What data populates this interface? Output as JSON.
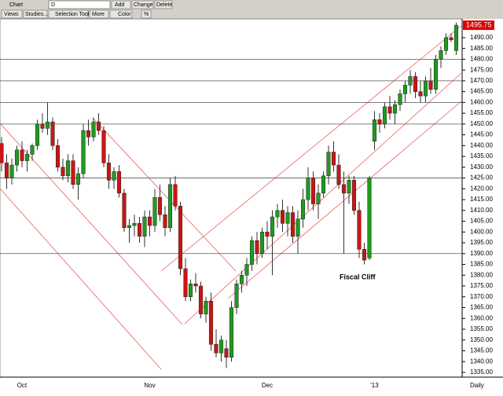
{
  "toolbar": {
    "title": "Chart",
    "symbol": "D",
    "add": "Add",
    "change": "Change",
    "delete": "Delete",
    "views": "Views",
    "studies": "Studies...",
    "tool": "Selection Tool",
    "more": "More",
    "color": "Color",
    "percent": "%"
  },
  "chart_data": {
    "type": "candlestick",
    "categories": [
      null,
      null,
      null,
      null,
      "Oct",
      null,
      null,
      null,
      null,
      null,
      null,
      null,
      null,
      null,
      null,
      null,
      null,
      null,
      null,
      null,
      null,
      null,
      null,
      null,
      null,
      null,
      null,
      null,
      null,
      "Nov",
      null,
      null,
      null,
      null,
      null,
      null,
      null,
      null,
      null,
      null,
      null,
      null,
      null,
      null,
      null,
      null,
      null,
      null,
      null,
      null,
      null,
      null,
      "Dec",
      null,
      null,
      null,
      null,
      null,
      null,
      null,
      null,
      null,
      null,
      null,
      null,
      null,
      null,
      null,
      null,
      null,
      null,
      null,
      null,
      "'13",
      null,
      null,
      null,
      null,
      null,
      null,
      null,
      null,
      null,
      null,
      null,
      null,
      null,
      null,
      null,
      null
    ],
    "open": [
      1441,
      1432,
      1425,
      1431,
      1438,
      1433,
      1436,
      1440,
      1450,
      1448,
      1451,
      1440,
      1430,
      1426,
      1433,
      1422,
      1427,
      1447,
      1444,
      1451,
      1447,
      1432,
      1424,
      1428,
      1418,
      1402,
      1403,
      1404,
      1398,
      1407,
      1403,
      1416,
      1408,
      1402,
      1422,
      1412,
      1383,
      1370,
      1376,
      1375,
      1362,
      1368,
      1348,
      1344,
      1346,
      1342,
      1365,
      1376,
      1380,
      1385,
      1396,
      1390,
      1400,
      1398,
      1407,
      1410,
      1404,
      1409,
      1398,
      1406,
      1415,
      1425,
      1413,
      1418,
      1426,
      1437,
      1431,
      1422,
      1418,
      1424,
      1410,
      1392,
      1388,
      1442,
      1452,
      1450,
      1458,
      1455,
      1459,
      1464,
      1468,
      1472,
      1465,
      1463,
      1470,
      1466,
      1480,
      1484,
      1490,
      1484
    ],
    "high": [
      1444,
      1436,
      1434,
      1440,
      1442,
      1438,
      1441,
      1452,
      1455,
      1460,
      1453,
      1443,
      1434,
      1436,
      1436,
      1430,
      1450,
      1452,
      1453,
      1455,
      1449,
      1436,
      1430,
      1431,
      1420,
      1406,
      1408,
      1407,
      1410,
      1410,
      1420,
      1422,
      1412,
      1425,
      1426,
      1414,
      1388,
      1378,
      1381,
      1377,
      1370,
      1372,
      1355,
      1352,
      1350,
      1368,
      1378,
      1382,
      1388,
      1398,
      1400,
      1402,
      1405,
      1410,
      1413,
      1415,
      1412,
      1412,
      1410,
      1420,
      1430,
      1428,
      1422,
      1428,
      1440,
      1442,
      1436,
      1428,
      1426,
      1426,
      1414,
      1395,
      1426,
      1456,
      1455,
      1460,
      1463,
      1461,
      1466,
      1470,
      1475,
      1474,
      1470,
      1472,
      1476,
      1482,
      1486,
      1492,
      1492,
      1497
    ],
    "low": [
      1428,
      1420,
      1422,
      1428,
      1430,
      1428,
      1433,
      1438,
      1446,
      1445,
      1438,
      1428,
      1424,
      1423,
      1420,
      1415,
      1425,
      1440,
      1442,
      1445,
      1430,
      1420,
      1420,
      1416,
      1400,
      1395,
      1398,
      1395,
      1393,
      1398,
      1400,
      1405,
      1398,
      1400,
      1410,
      1380,
      1368,
      1368,
      1372,
      1360,
      1358,
      1345,
      1342,
      1340,
      1337,
      1340,
      1362,
      1372,
      1375,
      1382,
      1385,
      1388,
      1392,
      1380,
      1402,
      1400,
      1398,
      1395,
      1390,
      1402,
      1410,
      1410,
      1406,
      1416,
      1422,
      1428,
      1420,
      1390,
      1413,
      1408,
      1388,
      1385,
      1387,
      1438,
      1446,
      1448,
      1452,
      1450,
      1456,
      1460,
      1464,
      1462,
      1460,
      1460,
      1464,
      1464,
      1476,
      1482,
      1488,
      1482
    ],
    "close": [
      1432,
      1425,
      1431,
      1438,
      1433,
      1436,
      1440,
      1450,
      1448,
      1451,
      1440,
      1430,
      1426,
      1433,
      1422,
      1427,
      1447,
      1444,
      1451,
      1447,
      1432,
      1424,
      1428,
      1418,
      1402,
      1403,
      1404,
      1398,
      1407,
      1403,
      1416,
      1408,
      1402,
      1422,
      1412,
      1383,
      1370,
      1376,
      1375,
      1362,
      1368,
      1348,
      1344,
      1350,
      1342,
      1365,
      1376,
      1380,
      1385,
      1396,
      1390,
      1400,
      1398,
      1407,
      1410,
      1404,
      1409,
      1398,
      1406,
      1415,
      1425,
      1413,
      1418,
      1426,
      1437,
      1431,
      1422,
      1418,
      1424,
      1410,
      1392,
      1387,
      1425,
      1452,
      1450,
      1458,
      1455,
      1459,
      1464,
      1468,
      1472,
      1465,
      1463,
      1470,
      1466,
      1480,
      1484,
      1490,
      1489,
      1495.75
    ],
    "up_color": "#1f9a1f",
    "down_color": "#cc1414",
    "ylim": [
      1332.8,
      1498.7
    ],
    "yticks": [
      {
        "value": 1335,
        "label": "1335.00"
      },
      {
        "value": 1340,
        "label": "1340.00"
      },
      {
        "value": 1345,
        "label": "1345.00"
      },
      {
        "value": 1350,
        "label": "1350.00"
      },
      {
        "value": 1355,
        "label": "1355.00"
      },
      {
        "value": 1360,
        "label": "1360.00"
      },
      {
        "value": 1365,
        "label": "1365.00"
      },
      {
        "value": 1370,
        "label": "1370.00"
      },
      {
        "value": 1375,
        "label": "1375.00"
      },
      {
        "value": 1380,
        "label": "1380.00"
      },
      {
        "value": 1385,
        "label": "1385.00"
      },
      {
        "value": 1390,
        "label": "1390.00"
      },
      {
        "value": 1395,
        "label": "1395.00"
      },
      {
        "value": 1400,
        "label": "1400.00"
      },
      {
        "value": 1405,
        "label": "1405.00"
      },
      {
        "value": 1410,
        "label": "1410.00"
      },
      {
        "value": 1415,
        "label": "1415.00"
      },
      {
        "value": 1420,
        "label": "1420.00"
      },
      {
        "value": 1425,
        "label": "1425.00"
      },
      {
        "value": 1430,
        "label": "1430.00"
      },
      {
        "value": 1435,
        "label": "1435.00"
      },
      {
        "value": 1440,
        "label": "1440.00"
      },
      {
        "value": 1445,
        "label": "1445.00"
      },
      {
        "value": 1450,
        "label": "1450.00"
      },
      {
        "value": 1455,
        "label": "1455.00"
      },
      {
        "value": 1460,
        "label": "1460.00"
      },
      {
        "value": 1465,
        "label": "1465.00"
      },
      {
        "value": 1470,
        "label": "1470.00"
      },
      {
        "value": 1475,
        "label": "1475.00"
      },
      {
        "value": 1480,
        "label": "1480.00"
      },
      {
        "value": 1485,
        "label": "1485.00"
      },
      {
        "value": 1490,
        "label": "1490.00"
      }
    ],
    "horizontal_lines": [
      1480,
      1470,
      1460,
      1450,
      1425,
      1390
    ],
    "last_price": 1495.75,
    "annotation": "Fiscal Cliff",
    "period": "Daily"
  }
}
